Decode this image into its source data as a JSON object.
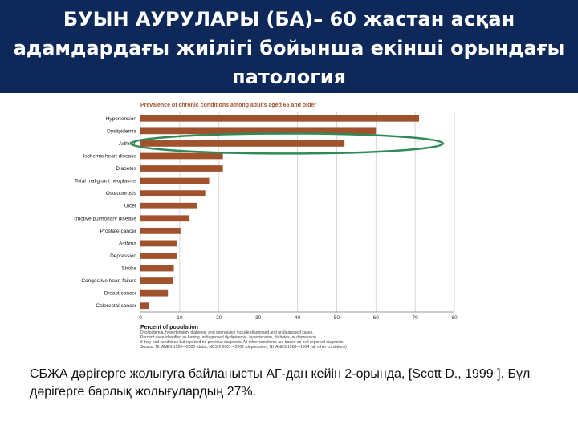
{
  "slide": {
    "title": "БУЫН АУРУЛАРЫ (БА)– 60 жастан асқан адамдардағы жиілігі бойынша екінші орындағы патология",
    "caption": "СБЖА дәрігерге жолығуға байланысты АГ-дан кейін 2-орында, [Scott D., 1999 ]. Бұл дәрігерге барлық жолығулардың 27%."
  },
  "colors": {
    "banner": "#0d2859",
    "bar": "#a0522d",
    "highlight": "#2e8b57",
    "grid": "#c8c8c8"
  },
  "chart_data": {
    "type": "bar",
    "orientation": "horizontal",
    "title": "Prevalence of chronic conditions among adults aged 65 and older",
    "xlabel": "Percent of population",
    "ylabel": "",
    "xlim": [
      0,
      80
    ],
    "xticks": [
      0,
      10,
      20,
      30,
      40,
      50,
      60,
      70,
      80
    ],
    "grid": true,
    "categories": [
      "Hypertension",
      "Dyslipidemia",
      "Arthritis",
      "Ischemic heart disease",
      "Diabetes",
      "Total malignant neoplasms",
      "Osteoporosis",
      "Ulcer",
      "Chronic obstructive pulmonary disease",
      "Prostate cancer",
      "Asthma",
      "Depression",
      "Stroke",
      "Congestive heart failure",
      "Breast cancer",
      "Colorectal cancer"
    ],
    "values": [
      71,
      60,
      52,
      21,
      21,
      17.5,
      16.5,
      14.5,
      12.5,
      10.2,
      9.2,
      9.2,
      8.5,
      8.2,
      7,
      2.2
    ],
    "highlighted_category": "Arthritis",
    "footnotes": [
      "Dyslipidemia, hypertension, diabetes, and depression include diagnosed and undiagnosed cases.",
      "Percent were identified as having undiagnosed dyslipidemia, hypertension, diabetes, or depression",
      "if they had conditions but reported no previous diagnosis. All other conditions are based on self-reported diagnosis.",
      "Source: NHANES 1999—2000 (data), NCS-2 2001—2002 (depression); NHANES 1988—1994 (all other conditions)"
    ]
  }
}
